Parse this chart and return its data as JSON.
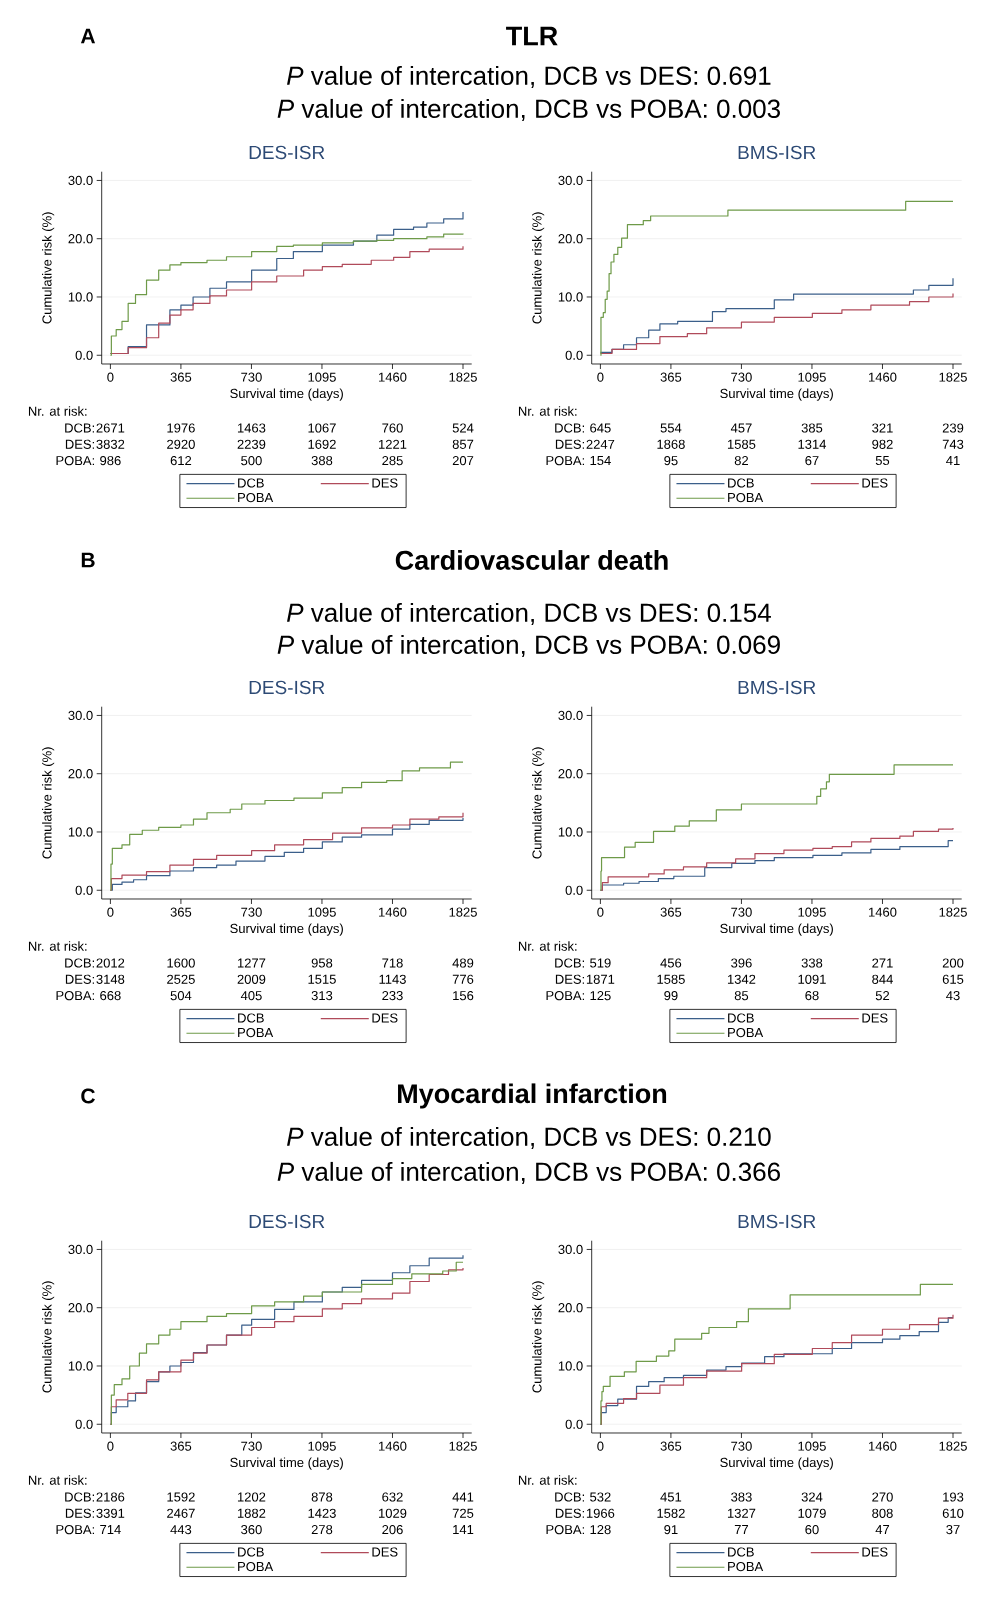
{
  "chart_data": [
    {
      "type": "step",
      "title": "DES-ISR",
      "xlabel": "Survival time (days)",
      "ylabel": "Cumulative risk (%)",
      "xlim": [
        -45,
        1870
      ],
      "ylim": [
        -1.5,
        31.5
      ],
      "xticks": [
        0,
        365,
        730,
        1095,
        1460,
        1825
      ],
      "yticks": [
        {
          "value": 0,
          "label": "0.0"
        },
        {
          "value": 10,
          "label": "10.0"
        },
        {
          "value": 20,
          "label": "20.0"
        },
        {
          "value": 30,
          "label": "30.0"
        }
      ],
      "grid": "y",
      "legend": "bottom",
      "series": [
        {
          "name": "DCB",
          "color": "#3b5f8a",
          "x": [
            0,
            92,
            187,
            308,
            365,
            428,
            515,
            601,
            731,
            861,
            947,
            1097,
            1258,
            1379,
            1466,
            1569,
            1638,
            1725,
            1825
          ],
          "values": [
            0.3,
            1.5,
            5.2,
            7.8,
            8.6,
            10,
            11.5,
            12.6,
            14.6,
            16.6,
            17.8,
            18.9,
            19.6,
            20.6,
            21.6,
            22,
            22.7,
            23.4,
            24.6
          ]
        },
        {
          "name": "DES",
          "color": "#b04a5a",
          "x": [
            0,
            92,
            187,
            250,
            308,
            365,
            428,
            515,
            601,
            731,
            861,
            1000,
            1097,
            1200,
            1350,
            1466,
            1550,
            1650,
            1825
          ],
          "values": [
            0.3,
            1.3,
            3.0,
            5.5,
            6.9,
            7.8,
            8.9,
            10.2,
            11.2,
            12.6,
            13.6,
            14.6,
            15.2,
            15.6,
            16.3,
            16.8,
            17.8,
            18.2,
            18.7
          ]
        },
        {
          "name": "POBA",
          "color": "#6e9a48",
          "x": [
            0,
            5,
            30,
            60,
            92,
            130,
            187,
            250,
            308,
            365,
            500,
            601,
            731,
            861,
            947,
            1097,
            1258,
            1379,
            1466,
            1638,
            1725,
            1825
          ],
          "values": [
            0,
            3.3,
            4.4,
            5.8,
            8.9,
            10.4,
            12.9,
            14.6,
            15.5,
            15.9,
            16.3,
            16.9,
            17.8,
            18.7,
            18.9,
            19.3,
            19.6,
            19.7,
            20,
            20.3,
            20.8,
            20.9
          ]
        }
      ],
      "annotations": [
        "A",
        "TLR",
        "*P* value of intercation, DCB vs DES: 0.691",
        "*P* value of intercation, DCB vs POBA: 0.003",
        "Nr. at risk:",
        "DCB:",
        "2671",
        "1976",
        "1463",
        "1067",
        "760",
        "524",
        "DES:",
        "3832",
        "2920",
        "2239",
        "1692",
        "1221",
        "857",
        "POBA:",
        "986",
        "612",
        "500",
        "388",
        "285",
        "207"
      ]
    },
    {
      "type": "step",
      "title": "BMS-ISR",
      "xlabel": "Survival time (days)",
      "ylabel": "Cumulative risk (%)",
      "xlim": [
        -45,
        1870
      ],
      "ylim": [
        -1.5,
        31.5
      ],
      "xticks": [
        0,
        365,
        730,
        1095,
        1460,
        1825
      ],
      "yticks": [
        {
          "value": 0,
          "label": "0.0"
        },
        {
          "value": 10,
          "label": "10.0"
        },
        {
          "value": 20,
          "label": "20.0"
        },
        {
          "value": 30,
          "label": "30.0"
        }
      ],
      "grid": "y",
      "legend": "bottom",
      "series": [
        {
          "name": "DCB",
          "color": "#3b5f8a",
          "x": [
            0,
            60,
            120,
            187,
            250,
            308,
            400,
            580,
            650,
            900,
            1000,
            1620,
            1700,
            1825
          ],
          "values": [
            0.5,
            1.0,
            1.8,
            3.0,
            4.3,
            5.4,
            5.8,
            7.5,
            8.0,
            9.5,
            10.5,
            11.2,
            12,
            13.2
          ]
        },
        {
          "name": "DES",
          "color": "#b04a5a",
          "x": [
            0,
            60,
            187,
            308,
            450,
            550,
            730,
            900,
            1097,
            1250,
            1400,
            1600,
            1700,
            1825
          ],
          "values": [
            0.3,
            1.0,
            2.0,
            3.2,
            3.7,
            4.7,
            5.7,
            6.5,
            7.2,
            7.8,
            8.6,
            9.2,
            10.0,
            10.6
          ]
        },
        {
          "name": "POBA",
          "color": "#6e9a48",
          "x": [
            0,
            3,
            15,
            25,
            35,
            45,
            55,
            70,
            90,
            110,
            140,
            222,
            260,
            660,
            1580,
            1825
          ],
          "values": [
            0,
            6.5,
            7.3,
            9.6,
            11,
            14,
            16,
            17.3,
            18.5,
            20.1,
            22.4,
            23.1,
            23.9,
            24.9,
            26.4,
            26.4
          ]
        }
      ],
      "annotations": [
        "Nr. at risk:",
        "DCB:",
        "645",
        "554",
        "457",
        "385",
        "321",
        "239",
        "DES:",
        "2247",
        "1868",
        "1585",
        "1314",
        "982",
        "743",
        "POBA:",
        "154",
        "95",
        "82",
        "67",
        "55",
        "41"
      ]
    },
    {
      "type": "step",
      "title": "DES-ISR",
      "xlabel": "Survival time (days)",
      "ylabel": "Cumulative risk (%)",
      "xlim": [
        -45,
        1870
      ],
      "ylim": [
        -1.5,
        31.5
      ],
      "xticks": [
        0,
        365,
        730,
        1095,
        1460,
        1825
      ],
      "yticks": [
        {
          "value": 0,
          "label": "0.0"
        },
        {
          "value": 10,
          "label": "10.0"
        },
        {
          "value": 20,
          "label": "20.0"
        },
        {
          "value": 30,
          "label": "30.0"
        }
      ],
      "grid": "y",
      "legend": "bottom",
      "series": [
        {
          "name": "DCB",
          "color": "#3b5f8a",
          "x": [
            0,
            10,
            60,
            120,
            187,
            308,
            430,
            550,
            650,
            800,
            900,
            1000,
            1097,
            1200,
            1300,
            1460,
            1550,
            1650,
            1825
          ],
          "values": [
            0,
            1.0,
            1.4,
            1.8,
            2.5,
            3.3,
            3.9,
            4.3,
            5.0,
            5.8,
            6.5,
            7.2,
            8.3,
            9.1,
            9.5,
            10.5,
            11.3,
            12.0,
            12.4
          ]
        },
        {
          "name": "DES",
          "color": "#b04a5a",
          "x": [
            0,
            5,
            60,
            187,
            308,
            430,
            550,
            731,
            850,
            1000,
            1150,
            1300,
            1460,
            1550,
            1700,
            1825
          ],
          "values": [
            0,
            2.0,
            2.6,
            3.2,
            4.3,
            5.3,
            6.0,
            6.8,
            7.8,
            8.7,
            9.8,
            10.7,
            11.2,
            12.2,
            12.6,
            13.3
          ]
        },
        {
          "name": "POBA",
          "color": "#6e9a48",
          "x": [
            0,
            3,
            10,
            60,
            100,
            165,
            250,
            365,
            430,
            500,
            620,
            680,
            800,
            950,
            1097,
            1200,
            1300,
            1430,
            1510,
            1600,
            1760,
            1825
          ],
          "values": [
            0,
            4.5,
            7.2,
            7.8,
            9.6,
            10.3,
            10.8,
            11.2,
            12.2,
            13.3,
            13.9,
            14.8,
            15.4,
            15.8,
            16.7,
            17.6,
            18.5,
            18.8,
            20.5,
            21.0,
            22.0,
            22.0
          ]
        }
      ],
      "annotations": [
        "B",
        "Cardiovascular death",
        "*P* value of intercation, DCB vs DES: 0.154",
        "*P* value of intercation, DCB vs POBA: 0.069",
        "Nr. at risk:",
        "DCB:",
        "2012",
        "1600",
        "1277",
        "958",
        "718",
        "489",
        "DES:",
        "3148",
        "2525",
        "2009",
        "1515",
        "1143",
        "776",
        "POBA:",
        "668",
        "504",
        "405",
        "313",
        "233",
        "156"
      ]
    },
    {
      "type": "step",
      "title": "BMS-ISR",
      "xlabel": "Survival time (days)",
      "ylabel": "Cumulative risk (%)",
      "xlim": [
        -45,
        1870
      ],
      "ylim": [
        -1.5,
        31.5
      ],
      "xticks": [
        0,
        365,
        730,
        1095,
        1460,
        1825
      ],
      "yticks": [
        {
          "value": 0,
          "label": "0.0"
        },
        {
          "value": 10,
          "label": "10.0"
        },
        {
          "value": 20,
          "label": "20.0"
        },
        {
          "value": 30,
          "label": "30.0"
        }
      ],
      "grid": "y",
      "legend": "bottom",
      "series": [
        {
          "name": "DCB",
          "color": "#3b5f8a",
          "x": [
            0,
            10,
            120,
            200,
            300,
            380,
            540,
            680,
            800,
            900,
            1100,
            1250,
            1400,
            1550,
            1800,
            1825
          ],
          "values": [
            0,
            0.9,
            1.2,
            1.5,
            2.0,
            2.4,
            3.9,
            4.6,
            5.1,
            5.6,
            6.0,
            6.4,
            7.0,
            7.5,
            8.5,
            8.5
          ]
        },
        {
          "name": "DES",
          "color": "#b04a5a",
          "x": [
            0,
            10,
            40,
            250,
            330,
            430,
            550,
            700,
            800,
            950,
            1100,
            1200,
            1300,
            1400,
            1550,
            1620,
            1750,
            1825
          ],
          "values": [
            0,
            1.3,
            2.3,
            2.8,
            3.5,
            4.0,
            4.7,
            5.4,
            6.3,
            6.9,
            7.2,
            7.5,
            8.3,
            8.9,
            9.3,
            10.1,
            10.5,
            10.7
          ]
        },
        {
          "name": "POBA",
          "color": "#6e9a48",
          "x": [
            0,
            3,
            6,
            125,
            180,
            275,
            385,
            460,
            600,
            730,
            1120,
            1140,
            1170,
            1185,
            1520,
            1825
          ],
          "values": [
            0,
            3.3,
            5.6,
            7.4,
            8.2,
            10.1,
            11.0,
            11.9,
            13.8,
            14.8,
            16.1,
            17.4,
            18.6,
            19.9,
            21.5,
            21.5
          ]
        }
      ],
      "annotations": [
        "Nr. at risk:",
        "DCB:",
        "519",
        "456",
        "396",
        "338",
        "271",
        "200",
        "DES:",
        "1871",
        "1585",
        "1342",
        "1091",
        "844",
        "615",
        "POBA:",
        "125",
        "99",
        "85",
        "68",
        "52",
        "43"
      ]
    },
    {
      "type": "step",
      "title": "DES-ISR",
      "xlabel": "Survival time (days)",
      "ylabel": "Cumulative risk (%)",
      "xlim": [
        -45,
        1870
      ],
      "ylim": [
        -1.5,
        31.5
      ],
      "xticks": [
        0,
        365,
        730,
        1095,
        1460,
        1825
      ],
      "yticks": [
        {
          "value": 0,
          "label": "0.0"
        },
        {
          "value": 10,
          "label": "10.0"
        },
        {
          "value": 20,
          "label": "20.0"
        },
        {
          "value": 30,
          "label": "30.0"
        }
      ],
      "grid": "y",
      "legend": "bottom",
      "series": [
        {
          "name": "DCB",
          "color": "#3b5f8a",
          "x": [
            0,
            5,
            30,
            90,
            130,
            187,
            250,
            308,
            365,
            430,
            500,
            601,
            680,
            731,
            850,
            950,
            1097,
            1200,
            1300,
            1460,
            1550,
            1650,
            1825
          ],
          "values": [
            0,
            2.0,
            3.0,
            4.0,
            5.4,
            7.3,
            9.0,
            10.0,
            10.6,
            12.3,
            13.6,
            15.3,
            17.0,
            18.0,
            19.7,
            21.0,
            22.7,
            23.5,
            24.7,
            26.0,
            27.2,
            28.5,
            29.0
          ]
        },
        {
          "name": "DES",
          "color": "#b04a5a",
          "x": [
            0,
            5,
            30,
            90,
            187,
            250,
            365,
            430,
            500,
            601,
            731,
            850,
            950,
            1097,
            1200,
            1300,
            1460,
            1550,
            1650,
            1750,
            1825
          ],
          "values": [
            0,
            3.0,
            4.2,
            5.3,
            7.6,
            9.0,
            11.0,
            12.2,
            13.6,
            15.3,
            16.6,
            17.6,
            18.5,
            19.8,
            20.7,
            21.5,
            22.5,
            24.5,
            25.7,
            26.5,
            26.8
          ]
        },
        {
          "name": "POBA",
          "color": "#6e9a48",
          "x": [
            0,
            5,
            20,
            60,
            100,
            150,
            187,
            250,
            308,
            365,
            500,
            601,
            731,
            850,
            1000,
            1097,
            1300,
            1460,
            1560,
            1720,
            1790,
            1825
          ],
          "values": [
            0,
            5.0,
            6.8,
            7.8,
            10.0,
            12.2,
            13.8,
            15.3,
            16.3,
            17.6,
            18.5,
            19.0,
            20.3,
            21.0,
            22.0,
            22.7,
            24.0,
            25.0,
            25.8,
            26.3,
            27.8,
            27.8
          ]
        }
      ],
      "annotations": [
        "C",
        "Myocardial infarction",
        "*P* value of intercation, DCB vs DES: 0.210",
        "*P* value of intercation, DCB vs POBA: 0.366",
        "Nr. at risk:",
        "DCB:",
        "2186",
        "1592",
        "1202",
        "878",
        "632",
        "441",
        "DES:",
        "3391",
        "2467",
        "1882",
        "1423",
        "1029",
        "725",
        "POBA:",
        "714",
        "443",
        "360",
        "278",
        "206",
        "141"
      ]
    },
    {
      "type": "step",
      "title": "BMS-ISR",
      "xlabel": "Survival time (days)",
      "ylabel": "Cumulative risk (%)",
      "xlim": [
        -45,
        1870
      ],
      "ylim": [
        -1.5,
        31.5
      ],
      "xticks": [
        0,
        365,
        730,
        1095,
        1460,
        1825
      ],
      "yticks": [
        {
          "value": 0,
          "label": "0.0"
        },
        {
          "value": 10,
          "label": "10.0"
        },
        {
          "value": 20,
          "label": "20.0"
        },
        {
          "value": 30,
          "label": "30.0"
        }
      ],
      "grid": "y",
      "legend": "bottom",
      "series": [
        {
          "name": "DCB",
          "color": "#3b5f8a",
          "x": [
            0,
            5,
            30,
            90,
            187,
            250,
            330,
            430,
            550,
            650,
            731,
            850,
            950,
            1200,
            1300,
            1460,
            1550,
            1650,
            1750,
            1800,
            1825
          ],
          "values": [
            0,
            2.0,
            3.2,
            4.3,
            6.5,
            7.3,
            8.0,
            8.4,
            9.3,
            9.9,
            10.5,
            11.6,
            12.1,
            13.0,
            14.0,
            14.6,
            15.2,
            15.9,
            17.5,
            18.3,
            18.3
          ]
        },
        {
          "name": "DES",
          "color": "#b04a5a",
          "x": [
            0,
            5,
            30,
            120,
            187,
            308,
            430,
            550,
            731,
            900,
            1097,
            1200,
            1300,
            1460,
            1600,
            1750,
            1825
          ],
          "values": [
            0,
            3.0,
            3.6,
            4.4,
            5.3,
            6.7,
            8.0,
            9.1,
            10.4,
            12.0,
            13.0,
            14.0,
            15.3,
            16.3,
            17.1,
            18.2,
            18.8
          ]
        },
        {
          "name": "POBA",
          "color": "#6e9a48",
          "x": [
            0,
            3,
            8,
            15,
            50,
            124,
            185,
            290,
            354,
            385,
            524,
            562,
            705,
            766,
            982,
            1656,
            1825
          ],
          "values": [
            0,
            4.0,
            5.6,
            6.5,
            8.2,
            9.0,
            10.8,
            11.7,
            12.6,
            14.6,
            15.6,
            16.6,
            17.6,
            19.8,
            22.2,
            24.0,
            24.0
          ]
        }
      ],
      "annotations": [
        "Nr. at risk:",
        "DCB:",
        "532",
        "451",
        "383",
        "324",
        "270",
        "193",
        "DES:",
        "1966",
        "1582",
        "1327",
        "1079",
        "808",
        "610",
        "POBA:",
        "128",
        "91",
        "77",
        "60",
        "47",
        "37"
      ]
    }
  ]
}
